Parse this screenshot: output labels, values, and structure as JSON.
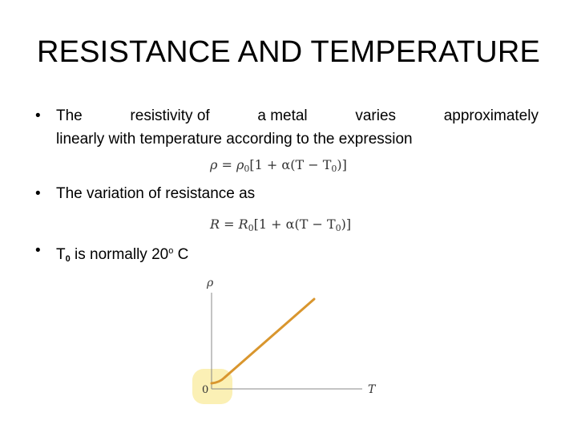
{
  "slide": {
    "title": "RESISTANCE AND TEMPERATURE",
    "bullet_symbol": "•",
    "bullet1": {
      "words_line1": [
        "The",
        "resistivity of",
        "a metal",
        "varies",
        "approximately"
      ],
      "line2": "linearly with temperature according to the expression"
    },
    "equation1": {
      "lhs": "ρ",
      "eq": " = ",
      "coef": "ρ",
      "coef_sub": "0",
      "open": "[1 + α(T − T",
      "t_sub": "0",
      "close": ")]"
    },
    "bullet2": "The variation of resistance as",
    "equation2": {
      "lhs": "R",
      "eq": " = ",
      "coef": "R",
      "coef_sub": "0",
      "open": "[1 + α(T − T",
      "t_sub": "0",
      "close": ")]"
    },
    "bullet3": {
      "prefix": "T",
      "sub": "0",
      "middle": " is normally 20",
      "sup": "o",
      "suffix": " C"
    }
  },
  "chart_data": {
    "type": "line",
    "xlabel": "T",
    "ylabel": "ρ",
    "origin_label": "0",
    "line_color": "#d9962e",
    "highlight_color": "#fbf0b5",
    "axis_color": "#888888"
  }
}
